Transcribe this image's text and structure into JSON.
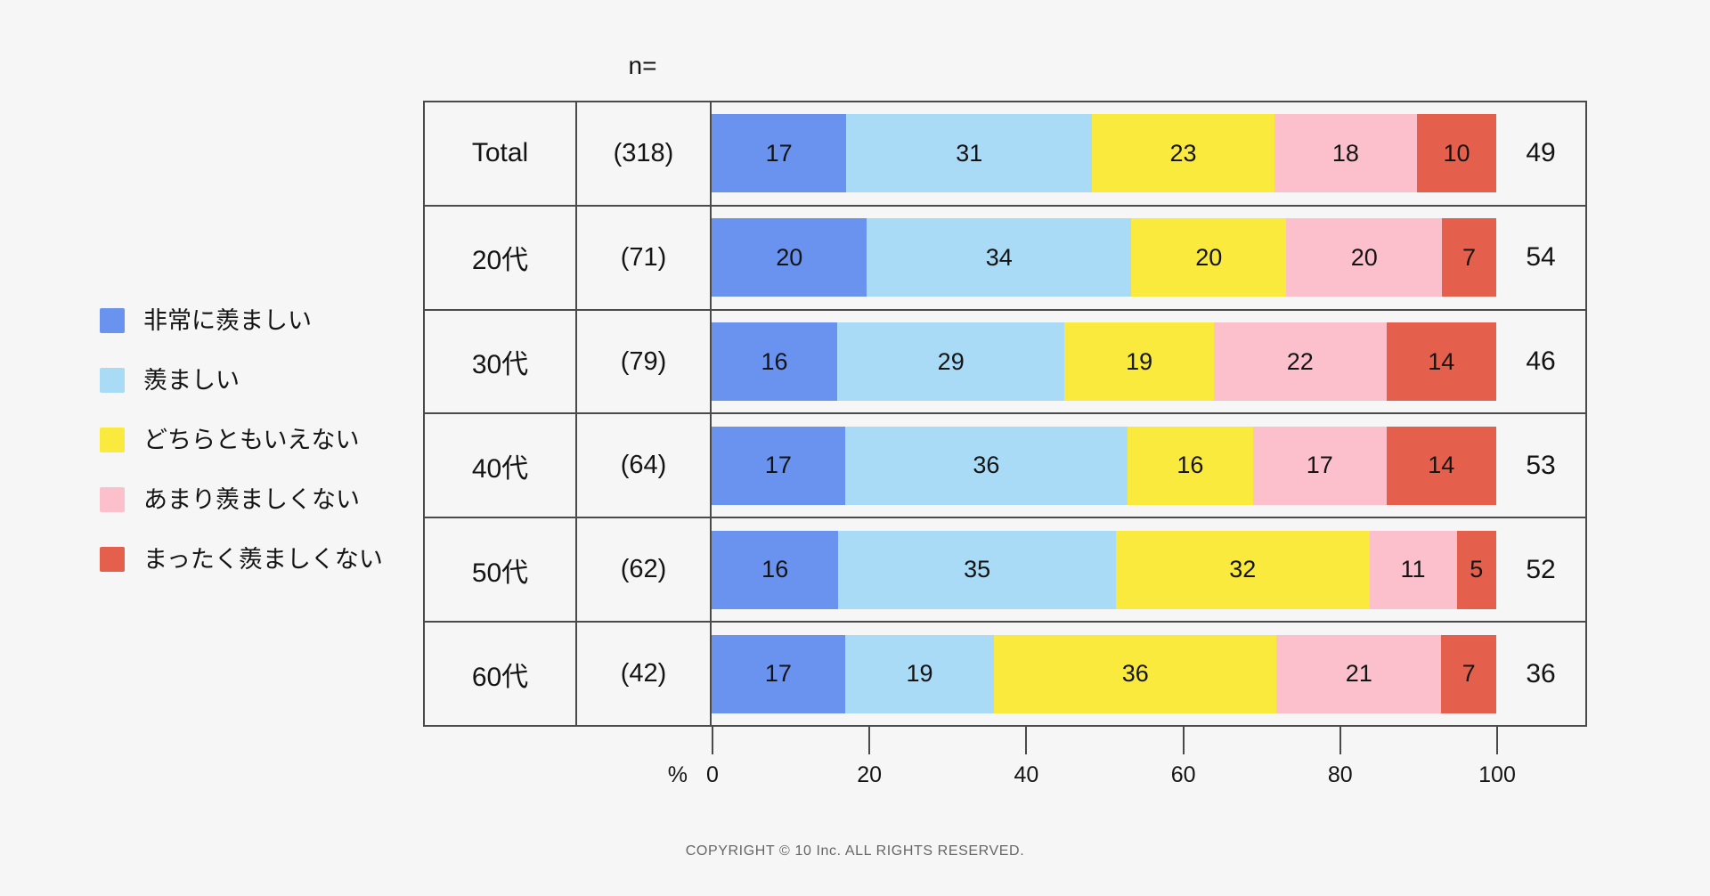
{
  "page": {
    "background": "#f6f6f6",
    "copyright": "COPYRIGHT © 10 Inc. ALL RIGHTS RESERVED."
  },
  "chart_data": {
    "type": "bar",
    "stacked": true,
    "orientation": "horizontal",
    "normalized_to_100": true,
    "n_label": "n=",
    "percent_label": "%",
    "categories": [
      "Total",
      "20代",
      "30代",
      "40代",
      "50代",
      "60代"
    ],
    "n_values": [
      "(318)",
      "(71)",
      "(79)",
      "(64)",
      "(62)",
      "(42)"
    ],
    "series": [
      {
        "name": "非常に羨ましい",
        "color": "#6A92EF",
        "values": [
          17,
          20,
          16,
          17,
          16,
          17
        ]
      },
      {
        "name": "羨ましい",
        "color": "#A9DAF6",
        "values": [
          31,
          34,
          29,
          36,
          35,
          19
        ]
      },
      {
        "name": "どちらともいえない",
        "color": "#F9EA3D",
        "values": [
          23,
          20,
          19,
          16,
          32,
          36
        ]
      },
      {
        "name": "あまり羨ましくない",
        "color": "#FBC0CB",
        "values": [
          18,
          20,
          22,
          17,
          11,
          21
        ]
      },
      {
        "name": "まったく羨ましくない",
        "color": "#E5604C",
        "values": [
          10,
          7,
          14,
          14,
          5,
          7
        ]
      }
    ],
    "row_totals": [
      49,
      54,
      46,
      53,
      52,
      36
    ],
    "x_ticks": [
      0,
      20,
      40,
      60,
      80,
      100
    ],
    "xlim": [
      0,
      100
    ],
    "grid": false,
    "legend_position": "left",
    "border_color": "#4a4a4a",
    "text_color": "#141414"
  }
}
